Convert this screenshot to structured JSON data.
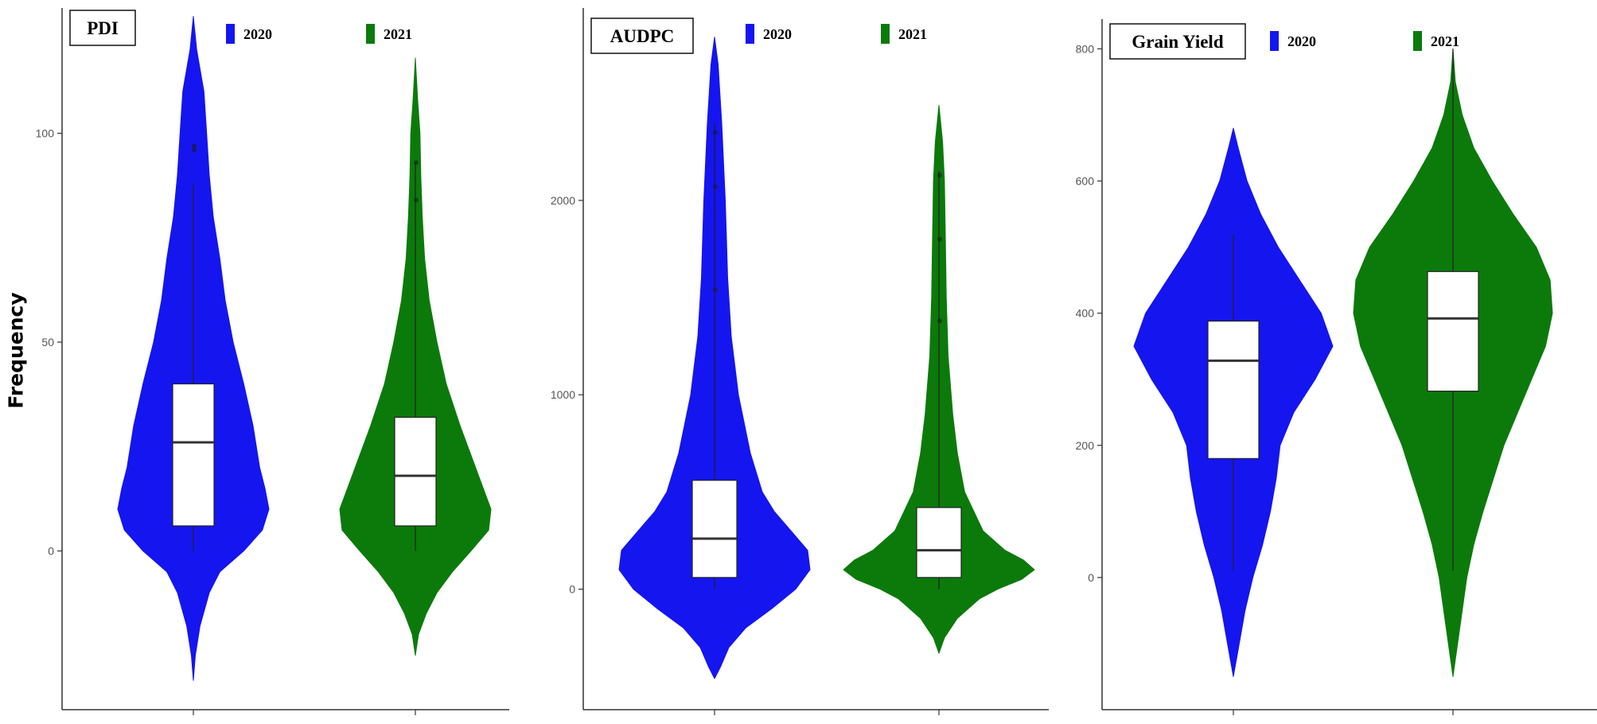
{
  "ylabel": "Frequency",
  "colors": {
    "2020": "#1515f0",
    "2021": "#0b7a0b"
  },
  "chart_data": [
    {
      "type": "violin",
      "title": "PDI",
      "legend": [
        "2020",
        "2021"
      ],
      "y_ticks": [
        0,
        50,
        100
      ],
      "ylim": [
        -38,
        130
      ],
      "groups": [
        {
          "name": "2020",
          "whisker": [
            0,
            88
          ],
          "box": {
            "q1": 6,
            "median": 26,
            "q3": 40
          },
          "range": [
            -31,
            128
          ],
          "outliers": [
            96,
            97
          ],
          "density": [
            [
              -31,
              0
            ],
            [
              -25,
              1.5
            ],
            [
              -18,
              5
            ],
            [
              -10,
              12
            ],
            [
              -5,
              20
            ],
            [
              0,
              38
            ],
            [
              5,
              52
            ],
            [
              10,
              57
            ],
            [
              15,
              54
            ],
            [
              20,
              50
            ],
            [
              30,
              45
            ],
            [
              40,
              38
            ],
            [
              50,
              30
            ],
            [
              60,
              24
            ],
            [
              70,
              20
            ],
            [
              80,
              15
            ],
            [
              90,
              12
            ],
            [
              100,
              10
            ],
            [
              110,
              8
            ],
            [
              120,
              2.5
            ],
            [
              128,
              0
            ]
          ]
        },
        {
          "name": "2021",
          "whisker": [
            0,
            93
          ],
          "box": {
            "q1": 6,
            "median": 18,
            "q3": 32
          },
          "range": [
            -25,
            118
          ],
          "outliers": [
            84,
            93
          ],
          "density": [
            [
              -25,
              0
            ],
            [
              -20,
              4
            ],
            [
              -15,
              14
            ],
            [
              -10,
              28
            ],
            [
              -5,
              48
            ],
            [
              0,
              72
            ],
            [
              5,
              95
            ],
            [
              10,
              98
            ],
            [
              15,
              88
            ],
            [
              20,
              78
            ],
            [
              30,
              58
            ],
            [
              40,
              40
            ],
            [
              50,
              28
            ],
            [
              60,
              18
            ],
            [
              70,
              12
            ],
            [
              80,
              9
            ],
            [
              90,
              7
            ],
            [
              100,
              6
            ],
            [
              108,
              3
            ],
            [
              118,
              0
            ]
          ]
        }
      ]
    },
    {
      "type": "violin",
      "title": "AUDPC",
      "legend": [
        "2020",
        "2021"
      ],
      "y_ticks": [
        0,
        1000,
        2000
      ],
      "ylim": [
        -620,
        2990
      ],
      "groups": [
        {
          "name": "2020",
          "whisker": [
            0,
            2400
          ],
          "box": {
            "q1": 60,
            "median": 260,
            "q3": 560
          },
          "range": [
            -460,
            2840
          ],
          "outliers": [
            1540,
            2070,
            2350
          ],
          "density": [
            [
              -460,
              0
            ],
            [
              -400,
              5
            ],
            [
              -300,
              12
            ],
            [
              -200,
              26
            ],
            [
              -100,
              48
            ],
            [
              0,
              68
            ],
            [
              100,
              80
            ],
            [
              200,
              78
            ],
            [
              300,
              64
            ],
            [
              400,
              50
            ],
            [
              500,
              40
            ],
            [
              700,
              30
            ],
            [
              1000,
              20
            ],
            [
              1300,
              14
            ],
            [
              1600,
              11
            ],
            [
              2000,
              9
            ],
            [
              2400,
              6
            ],
            [
              2700,
              3
            ],
            [
              2840,
              0
            ]
          ]
        },
        {
          "name": "2021",
          "whisker": [
            0,
            2150
          ],
          "box": {
            "q1": 60,
            "median": 200,
            "q3": 420
          },
          "range": [
            -330,
            2490
          ],
          "outliers": [
            1380,
            1800,
            2130
          ],
          "density": [
            [
              -330,
              0
            ],
            [
              -250,
              6
            ],
            [
              -150,
              20
            ],
            [
              -50,
              44
            ],
            [
              0,
              64
            ],
            [
              50,
              90
            ],
            [
              100,
              104
            ],
            [
              150,
              92
            ],
            [
              200,
              72
            ],
            [
              300,
              48
            ],
            [
              500,
              28
            ],
            [
              700,
              20
            ],
            [
              900,
              15
            ],
            [
              1200,
              10
            ],
            [
              1500,
              8
            ],
            [
              1800,
              7
            ],
            [
              2100,
              6
            ],
            [
              2300,
              4
            ],
            [
              2490,
              0
            ]
          ]
        }
      ]
    },
    {
      "type": "violin",
      "title": "Grain Yield",
      "legend": [
        "2020",
        "2021"
      ],
      "y_ticks": [
        0,
        200,
        400,
        600,
        800
      ],
      "ylim": [
        -200,
        845
      ],
      "groups": [
        {
          "name": "2020",
          "whisker": [
            10,
            520
          ],
          "box": {
            "q1": 180,
            "median": 328,
            "q3": 388
          },
          "range": [
            -150,
            680
          ],
          "outliers": [],
          "density": [
            [
              -150,
              0
            ],
            [
              -100,
              6
            ],
            [
              -50,
              12
            ],
            [
              0,
              20
            ],
            [
              50,
              30
            ],
            [
              100,
              38
            ],
            [
              150,
              44
            ],
            [
              200,
              48
            ],
            [
              250,
              62
            ],
            [
              300,
              84
            ],
            [
              350,
              102
            ],
            [
              400,
              90
            ],
            [
              450,
              68
            ],
            [
              500,
              46
            ],
            [
              550,
              28
            ],
            [
              600,
              14
            ],
            [
              650,
              5
            ],
            [
              680,
              0
            ]
          ]
        },
        {
          "name": "2021",
          "whisker": [
            10,
            800
          ],
          "box": {
            "q1": 282,
            "median": 392,
            "q3": 463
          },
          "range": [
            -150,
            800
          ],
          "outliers": [],
          "density": [
            [
              -150,
              0
            ],
            [
              -100,
              4
            ],
            [
              -50,
              8
            ],
            [
              0,
              12
            ],
            [
              50,
              18
            ],
            [
              100,
              26
            ],
            [
              200,
              44
            ],
            [
              300,
              68
            ],
            [
              350,
              80
            ],
            [
              400,
              86
            ],
            [
              450,
              84
            ],
            [
              500,
              72
            ],
            [
              550,
              52
            ],
            [
              600,
              34
            ],
            [
              650,
              18
            ],
            [
              700,
              8
            ],
            [
              750,
              2
            ],
            [
              800,
              0
            ]
          ]
        }
      ]
    }
  ]
}
